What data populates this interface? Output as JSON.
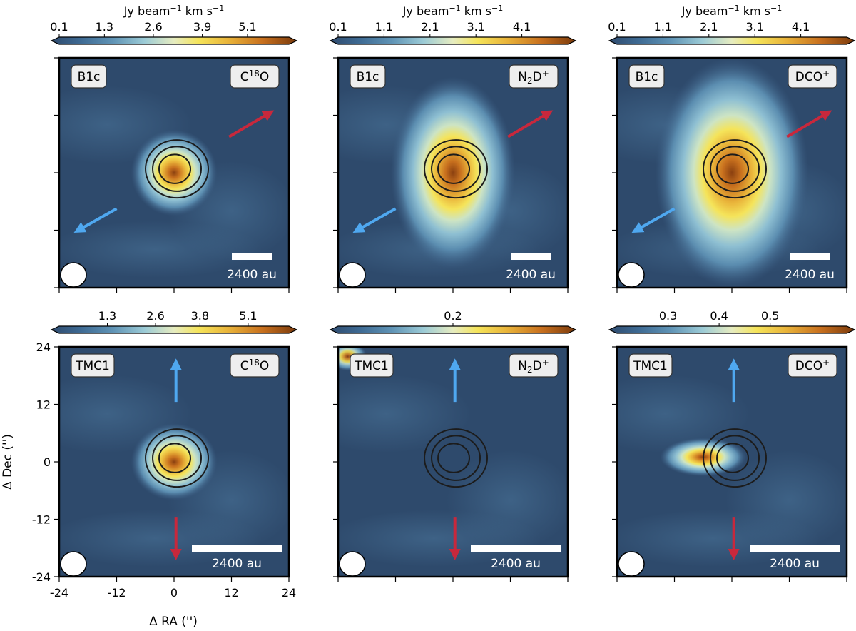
{
  "figure": {
    "colorbar_label_parts": [
      "Jy beam",
      "−1",
      " km s",
      "−1"
    ],
    "scalebar_label": "2400 au",
    "xlabel": "Δ RA ('')",
    "ylabel": "Δ Dec ('')"
  },
  "chart_data": [
    {
      "type": "heatmap",
      "source": "B1c",
      "molecule": {
        "base": "C",
        "sup": "18",
        "rest": "O"
      },
      "colorbar": {
        "ticks": [
          "0.1",
          "1.3",
          "2.6",
          "3.9",
          "5.1"
        ],
        "range": [
          0.1,
          6.2
        ],
        "show_label": true
      },
      "outflow": {
        "red_direction": "north-east",
        "blue_direction": "south-west"
      },
      "emission": {
        "peak_offset": [
          0,
          0
        ],
        "extent": [
          9,
          9
        ],
        "peak_level": 1.0
      }
    },
    {
      "type": "heatmap",
      "source": "B1c",
      "molecule": {
        "base": "N",
        "sub": "2",
        "rest": "D",
        "sup": "+"
      },
      "colorbar": {
        "ticks": [
          "0.1",
          "1.1",
          "2.1",
          "3.1",
          "4.1"
        ],
        "range": [
          0.1,
          5.1
        ],
        "show_label": true
      },
      "outflow": {
        "red_direction": "north-east",
        "blue_direction": "south-west"
      },
      "emission": {
        "peak_offset": [
          0,
          0
        ],
        "extent": [
          13,
          20
        ],
        "peak_level": 1.0
      }
    },
    {
      "type": "heatmap",
      "source": "B1c",
      "molecule": {
        "base": "DCO",
        "sup": "+"
      },
      "colorbar": {
        "ticks": [
          "0.1",
          "1.1",
          "2.1",
          "3.1",
          "4.1"
        ],
        "range": [
          0.1,
          5.1
        ],
        "show_label": true
      },
      "outflow": {
        "red_direction": "north-east",
        "blue_direction": "south-west"
      },
      "emission": {
        "peak_offset": [
          0,
          0
        ],
        "extent": [
          16,
          24
        ],
        "peak_level": 1.0
      }
    },
    {
      "type": "heatmap",
      "source": "TMC1",
      "molecule": {
        "base": "C",
        "sup": "18",
        "rest": "O"
      },
      "colorbar": {
        "ticks": [
          "1.3",
          "2.6",
          "3.8",
          "5.1"
        ],
        "range": [
          0.0,
          6.2
        ],
        "show_label": false
      },
      "outflow": {
        "red_direction": "south",
        "blue_direction": "north"
      },
      "emission": {
        "peak_offset": [
          0,
          0
        ],
        "extent": [
          9,
          8
        ],
        "peak_level": 1.0
      },
      "axes": {
        "xlim": [
          -24,
          24
        ],
        "ylim": [
          -24,
          24
        ],
        "xticks": [
          "-24",
          "-12",
          "0",
          "12",
          "24"
        ],
        "yticks": [
          "24",
          "12",
          "0",
          "-12",
          "-24"
        ]
      }
    },
    {
      "type": "heatmap",
      "source": "TMC1",
      "molecule": {
        "base": "N",
        "sub": "2",
        "rest": "D",
        "sup": "+"
      },
      "colorbar": {
        "ticks": [
          "0.2"
        ],
        "range": [
          0.0,
          0.4
        ],
        "show_label": false
      },
      "outflow": {
        "red_direction": "south",
        "blue_direction": "north"
      },
      "emission": {
        "peak_offset": [
          -22,
          22
        ],
        "extent": [
          4,
          3
        ],
        "peak_level": 0.9
      }
    },
    {
      "type": "heatmap",
      "source": "TMC1",
      "molecule": {
        "base": "DCO",
        "sup": "+"
      },
      "colorbar": {
        "ticks": [
          "0.3",
          "0.4",
          "0.5"
        ],
        "range": [
          0.2,
          0.65
        ],
        "show_label": false
      },
      "outflow": {
        "red_direction": "south",
        "blue_direction": "north"
      },
      "emission": {
        "peak_offset": [
          -6,
          1
        ],
        "extent": [
          9,
          4
        ],
        "peak_level": 1.0
      }
    }
  ]
}
